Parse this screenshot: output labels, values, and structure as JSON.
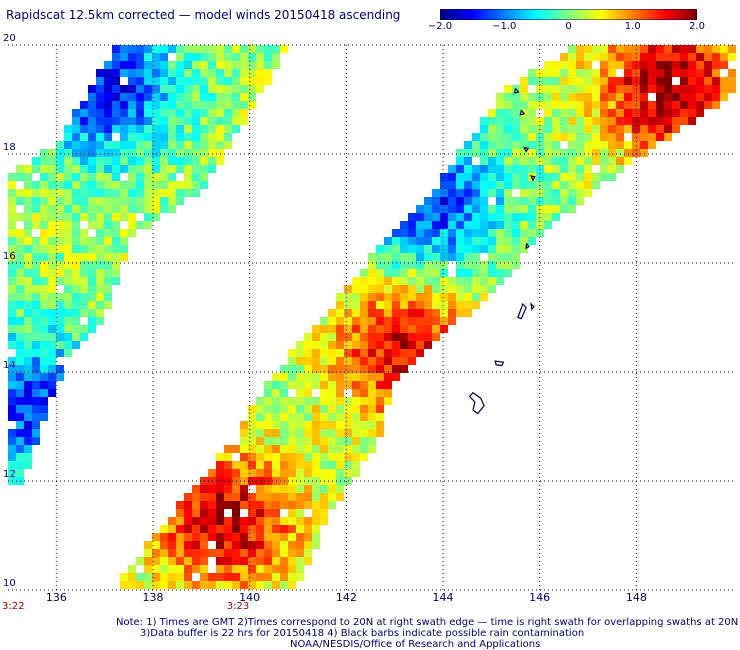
{
  "title": "Rapidscat 12.5km corrected — model winds 20150418 ascending",
  "colorbar": {
    "ticks": [
      "−2.0",
      "−1.0",
      "0",
      "1.0",
      "2.0"
    ],
    "tick_values": [
      -2.0,
      -1.0,
      0,
      1.0,
      2.0
    ],
    "range": [
      -2.0,
      2.0
    ],
    "colors": [
      "#00007f",
      "#0000ff",
      "#0080ff",
      "#00ffff",
      "#80ff80",
      "#ffff00",
      "#ff8000",
      "#ff0000",
      "#7f0000"
    ]
  },
  "time_labels": [
    {
      "text": "3:22",
      "lon": 135.0
    },
    {
      "text": "3:23",
      "lon": 139.65
    }
  ],
  "notes": {
    "line1": "Note: 1) Times are GMT 2)Times correspond to 20N at right swath edge — time is right swath for overlapping swaths at 20N",
    "line2": "3)Data buffer is 22 hrs for 20150418 4) Black barbs indicate possible rain contamination",
    "line3": "NOAA/NESDIS/Office of Research and Applications"
  },
  "chart_data": {
    "type": "heatmap",
    "title": "Rapidscat 12.5km corrected — model winds 20150418 ascending",
    "xlim": [
      135.0,
      150.0
    ],
    "ylim": [
      10.0,
      20.0
    ],
    "x_ticks": [
      136,
      138,
      140,
      142,
      144,
      146,
      148
    ],
    "x_tick_labels": [
      "136",
      "138",
      "140",
      "142",
      "144",
      "146",
      "148"
    ],
    "y_ticks": [
      10,
      12,
      14,
      16,
      18,
      20
    ],
    "y_tick_labels": [
      "10",
      "12",
      "14",
      "16",
      "18",
      "20"
    ],
    "grid": true,
    "colorbar_range": [
      -2.0,
      2.0
    ],
    "swaths": [
      {
        "name": "left",
        "poly": [
          [
            137.2,
            19.95
          ],
          [
            140.8,
            19.95
          ],
          [
            139.0,
            17.3
          ],
          [
            137.6,
            16.5
          ],
          [
            137.0,
            14.9
          ],
          [
            136.3,
            14.4
          ],
          [
            135.8,
            13.3
          ],
          [
            135.3,
            11.9
          ],
          [
            135.0,
            11.9
          ],
          [
            135.0,
            17.6
          ],
          [
            136.0,
            18.2
          ]
        ]
      },
      {
        "name": "right",
        "poly": [
          [
            146.7,
            19.95
          ],
          [
            150.0,
            19.95
          ],
          [
            150.0,
            19.1
          ],
          [
            148.0,
            17.9
          ],
          [
            146.0,
            16.5
          ],
          [
            145.0,
            15.4
          ],
          [
            144.0,
            14.7
          ],
          [
            143.0,
            13.8
          ],
          [
            142.7,
            12.8
          ],
          [
            141.8,
            11.6
          ],
          [
            141.2,
            10.5
          ],
          [
            141.0,
            10.0
          ],
          [
            137.2,
            10.0
          ],
          [
            138.2,
            11.2
          ],
          [
            139.7,
            12.8
          ],
          [
            140.4,
            13.9
          ],
          [
            141.1,
            14.7
          ],
          [
            141.8,
            15.3
          ],
          [
            142.6,
            16.2
          ],
          [
            143.6,
            17.1
          ],
          [
            144.5,
            18.2
          ],
          [
            145.3,
            19.2
          ]
        ]
      }
    ],
    "features": [
      {
        "name": "cold-region-west",
        "lon": 137.0,
        "lat": 19.2,
        "value": -1.6
      },
      {
        "name": "warm-region-north",
        "lon": 148.7,
        "lat": 19.2,
        "value": 1.8
      },
      {
        "name": "cold-region-central",
        "lon": 143.7,
        "lat": 17.1,
        "value": -1.5
      },
      {
        "name": "warm-region-center",
        "lon": 143.2,
        "lat": 14.4,
        "value": 1.5
      },
      {
        "name": "warm-region-southwest",
        "lon": 139.5,
        "lat": 11.3,
        "value": 1.6
      },
      {
        "name": "cold-region-west-edge",
        "lon": 135.5,
        "lat": 13.4,
        "value": -1.5
      }
    ]
  }
}
